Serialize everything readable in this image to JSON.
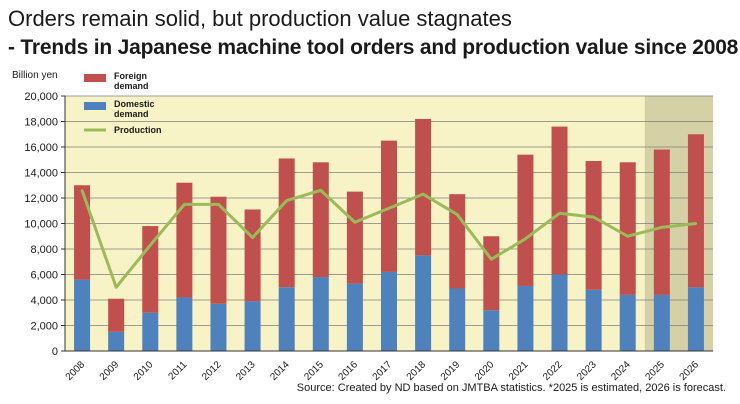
{
  "title": "Orders remain solid, but production value stagnates",
  "subtitle": "- Trends in Japanese machine tool orders and production value since 2008 -",
  "source": "Source: Created by ND based on JMTBA statistics. *2025 is estimated, 2026 is forecast.",
  "colors": {
    "background": "#f8f3c6",
    "projection_band": "#d5d0a5",
    "foreign": "#c0504d",
    "domestic": "#4f81bd",
    "production": "#9bbb59",
    "grid": "#7f7f7f"
  },
  "chart_data": {
    "type": "bar",
    "stacked": true,
    "ylabel": "Billion yen",
    "ylim": [
      0,
      20000
    ],
    "yticks": [
      "0",
      "2,000",
      "4,000",
      "6,000",
      "8,000",
      "10,000",
      "12,000",
      "14,000",
      "16,000",
      "18,000",
      "20,000"
    ],
    "categories": [
      "2008",
      "2009",
      "2010",
      "2011",
      "2012",
      "2013",
      "2014",
      "2015",
      "2016",
      "2017",
      "2018",
      "2019",
      "2020",
      "2021",
      "2022",
      "2023",
      "2024",
      "2025",
      "2026"
    ],
    "projected_categories": [
      "2025",
      "2026"
    ],
    "legend_position": "top-left",
    "series": [
      {
        "name": "Domestic demand",
        "label_lines": [
          "Domestic",
          "demand"
        ],
        "type": "bar",
        "values": [
          5600,
          1500,
          3000,
          4200,
          3700,
          3900,
          5000,
          5800,
          5300,
          6200,
          7500,
          4900,
          3200,
          5100,
          6000,
          4800,
          4400,
          4400,
          5000
        ]
      },
      {
        "name": "Foreign demand",
        "label_lines": [
          "Foreign",
          "demand"
        ],
        "type": "bar",
        "values": [
          7400,
          2600,
          6800,
          9000,
          8400,
          7200,
          10100,
          9000,
          7200,
          10300,
          10700,
          7400,
          5800,
          10300,
          11600,
          10100,
          10400,
          11400,
          12000
        ]
      },
      {
        "name": "Production",
        "label_lines": [
          "Production"
        ],
        "type": "line",
        "values": [
          12600,
          5000,
          8300,
          11500,
          11500,
          8900,
          11800,
          12600,
          10100,
          11200,
          12300,
          10700,
          7200,
          8800,
          10800,
          10500,
          9000,
          9700,
          10000
        ]
      }
    ]
  }
}
